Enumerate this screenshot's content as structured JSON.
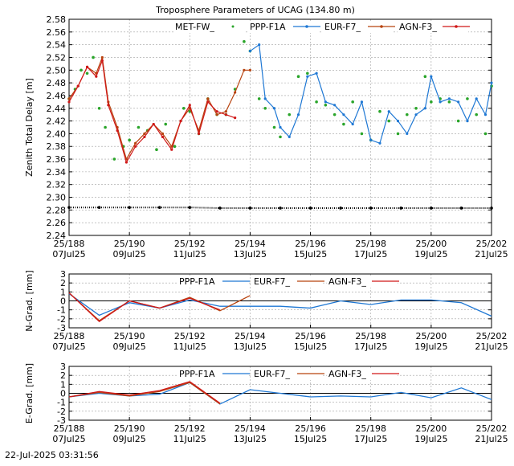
{
  "title": "Troposphere Parameters of UCAG (134.80 m)",
  "timestamp": "22-Jul-2025 03:31:56",
  "x_ticks": [
    {
      "top": "25/188",
      "bottom": "07Jul25"
    },
    {
      "top": "25/190",
      "bottom": "09Jul25"
    },
    {
      "top": "25/192",
      "bottom": "11Jul25"
    },
    {
      "top": "25/194",
      "bottom": "13Jul25"
    },
    {
      "top": "25/196",
      "bottom": "15Jul25"
    },
    {
      "top": "25/198",
      "bottom": "17Jul25"
    },
    {
      "top": "25/200",
      "bottom": "19Jul25"
    },
    {
      "top": "25/202",
      "bottom": "21Jul25"
    }
  ],
  "colors": {
    "MET-FW_": "#2aa52a",
    "PPP-F1A": "#1f78d4",
    "EUR-F7_": "#b8430f",
    "AGN-F3_": "#d01818",
    "MET-base": "#000000"
  },
  "chart_data": [
    {
      "type": "line",
      "id": "ztd",
      "ylabel": "Zenith Total Delay [m]",
      "xlim": [
        188,
        202
      ],
      "ylim": [
        2.24,
        2.58
      ],
      "yticks": [
        "2.24",
        "2.26",
        "2.28",
        "2.30",
        "2.32",
        "2.34",
        "2.36",
        "2.38",
        "2.40",
        "2.42",
        "2.44",
        "2.46",
        "2.48",
        "2.50",
        "2.52",
        "2.54",
        "2.56",
        "2.58"
      ],
      "legend": [
        "MET-FW_",
        "PPP-F1A",
        "EUR-F7_",
        "AGN-F3_"
      ],
      "series": [
        {
          "name": "MET-FW_",
          "style": "dots",
          "x": [
            188.0,
            188.2,
            188.4,
            188.6,
            188.8,
            189.0,
            189.2,
            189.5,
            189.8,
            190.0,
            190.3,
            190.6,
            190.9,
            191.2,
            191.5,
            191.8,
            192.0,
            192.3,
            192.6,
            192.9,
            193.2,
            193.5,
            193.8,
            194.0,
            194.3,
            194.5,
            194.8,
            195.0,
            195.3,
            195.6,
            195.9,
            196.2,
            196.5,
            196.8,
            197.1,
            197.4,
            197.7,
            198.0,
            198.3,
            198.6,
            198.9,
            199.2,
            199.5,
            199.8,
            200.0,
            200.3,
            200.6,
            200.9,
            201.2,
            201.5,
            201.8,
            202.0
          ],
          "y": [
            2.455,
            2.47,
            2.5,
            2.495,
            2.52,
            2.44,
            2.41,
            2.36,
            2.38,
            2.39,
            2.41,
            2.405,
            2.375,
            2.415,
            2.38,
            2.44,
            2.435,
            2.4,
            2.455,
            2.43,
            2.43,
            2.47,
            2.545,
            2.53,
            2.455,
            2.44,
            2.41,
            2.395,
            2.43,
            2.49,
            2.495,
            2.45,
            2.445,
            2.43,
            2.415,
            2.45,
            2.4,
            2.39,
            2.435,
            2.42,
            2.4,
            2.43,
            2.44,
            2.49,
            2.45,
            2.455,
            2.45,
            2.42,
            2.455,
            2.43,
            2.4,
            2.475
          ]
        },
        {
          "name": "PPP-F1A",
          "style": "line",
          "x": [
            194.0,
            194.3,
            194.5,
            194.8,
            195.0,
            195.3,
            195.6,
            195.9,
            196.2,
            196.5,
            196.8,
            197.1,
            197.4,
            197.7,
            198.0,
            198.3,
            198.6,
            198.9,
            199.2,
            199.5,
            199.8,
            200.0,
            200.3,
            200.6,
            200.9,
            201.2,
            201.5,
            201.8,
            202.0
          ],
          "y": [
            2.53,
            2.54,
            2.455,
            2.44,
            2.41,
            2.395,
            2.43,
            2.49,
            2.495,
            2.45,
            2.445,
            2.43,
            2.415,
            2.45,
            2.39,
            2.385,
            2.435,
            2.42,
            2.4,
            2.43,
            2.44,
            2.49,
            2.45,
            2.455,
            2.45,
            2.42,
            2.455,
            2.43,
            2.48
          ]
        },
        {
          "name": "EUR-F7_",
          "style": "line",
          "x": [
            188.0,
            188.3,
            188.6,
            188.9,
            189.1,
            189.3,
            189.6,
            189.9,
            190.2,
            190.5,
            190.8,
            191.1,
            191.4,
            191.7,
            192.0,
            192.3,
            192.6,
            192.9,
            193.2,
            193.5,
            193.8,
            194.0
          ],
          "y": [
            2.455,
            2.475,
            2.505,
            2.495,
            2.52,
            2.45,
            2.41,
            2.36,
            2.385,
            2.4,
            2.415,
            2.4,
            2.38,
            2.42,
            2.44,
            2.405,
            2.455,
            2.43,
            2.435,
            2.465,
            2.5,
            2.5
          ]
        },
        {
          "name": "AGN-F3_",
          "style": "line",
          "x": [
            188.0,
            188.3,
            188.6,
            188.9,
            189.1,
            189.3,
            189.6,
            189.9,
            190.2,
            190.5,
            190.8,
            191.1,
            191.4,
            191.7,
            192.0,
            192.3,
            192.6,
            192.9,
            193.2,
            193.5
          ],
          "y": [
            2.45,
            2.475,
            2.505,
            2.49,
            2.515,
            2.445,
            2.405,
            2.355,
            2.38,
            2.395,
            2.415,
            2.395,
            2.375,
            2.42,
            2.445,
            2.4,
            2.45,
            2.435,
            2.43,
            2.425
          ]
        },
        {
          "name": "MET-base",
          "style": "dots",
          "x": [
            188,
            189,
            190,
            191,
            192,
            193,
            194,
            195,
            196,
            197,
            198,
            199,
            200,
            201,
            202
          ],
          "y": [
            2.284,
            2.284,
            2.284,
            2.284,
            2.284,
            2.283,
            2.283,
            2.283,
            2.283,
            2.283,
            2.283,
            2.283,
            2.283,
            2.283,
            2.283
          ]
        }
      ]
    },
    {
      "type": "line",
      "id": "ngrad",
      "ylabel": "N-Grad. [mm]",
      "xlim": [
        188,
        202
      ],
      "ylim": [
        -3,
        3
      ],
      "yticks": [
        "-3",
        "-2",
        "-1",
        "0",
        "1",
        "2",
        "3"
      ],
      "legend": [
        "PPP-F1A",
        "EUR-F7_",
        "AGN-F3_"
      ],
      "series": [
        {
          "name": "PPP-F1A",
          "x": [
            188,
            189,
            190,
            191,
            192,
            193,
            194,
            195,
            196,
            197,
            198,
            199,
            200,
            201,
            202
          ],
          "y": [
            0.8,
            -1.6,
            -0.2,
            -0.8,
            0.1,
            -0.6,
            -0.6,
            -0.6,
            -0.8,
            0.0,
            -0.4,
            0.1,
            0.1,
            -0.2,
            -1.7
          ]
        },
        {
          "name": "EUR-F7_",
          "x": [
            188,
            189,
            190,
            191,
            192,
            193,
            194
          ],
          "y": [
            0.9,
            -2.2,
            0.0,
            -0.8,
            0.4,
            -1.1,
            0.6
          ]
        },
        {
          "name": "AGN-F3_",
          "x": [
            188,
            189,
            190,
            191,
            192,
            193
          ],
          "y": [
            0.9,
            -2.3,
            0.0,
            -0.8,
            0.3,
            -1.0
          ]
        }
      ]
    },
    {
      "type": "line",
      "id": "egrad",
      "ylabel": "E-Grad. [mm]",
      "xlim": [
        188,
        202
      ],
      "ylim": [
        -3,
        3
      ],
      "yticks": [
        "-3",
        "-2",
        "-1",
        "0",
        "1",
        "2",
        "3"
      ],
      "legend": [
        "PPP-F1A",
        "EUR-F7_",
        "AGN-F3_"
      ],
      "series": [
        {
          "name": "PPP-F1A",
          "x": [
            188,
            189,
            190,
            191,
            192,
            193,
            194,
            195,
            196,
            197,
            198,
            199,
            200,
            201,
            202
          ],
          "y": [
            -0.4,
            0.0,
            -0.3,
            -0.1,
            1.2,
            -1.2,
            0.4,
            0.0,
            -0.4,
            -0.3,
            -0.4,
            0.1,
            -0.5,
            0.6,
            -0.7
          ]
        },
        {
          "name": "EUR-F7_",
          "x": [
            188,
            189,
            190,
            191,
            192,
            193
          ],
          "y": [
            -0.4,
            0.1,
            -0.3,
            0.2,
            1.2,
            -1.2
          ]
        },
        {
          "name": "AGN-F3_",
          "x": [
            188,
            189,
            190,
            191,
            192,
            193
          ],
          "y": [
            -0.4,
            0.2,
            -0.2,
            0.3,
            1.3,
            -1.1
          ]
        }
      ]
    }
  ]
}
